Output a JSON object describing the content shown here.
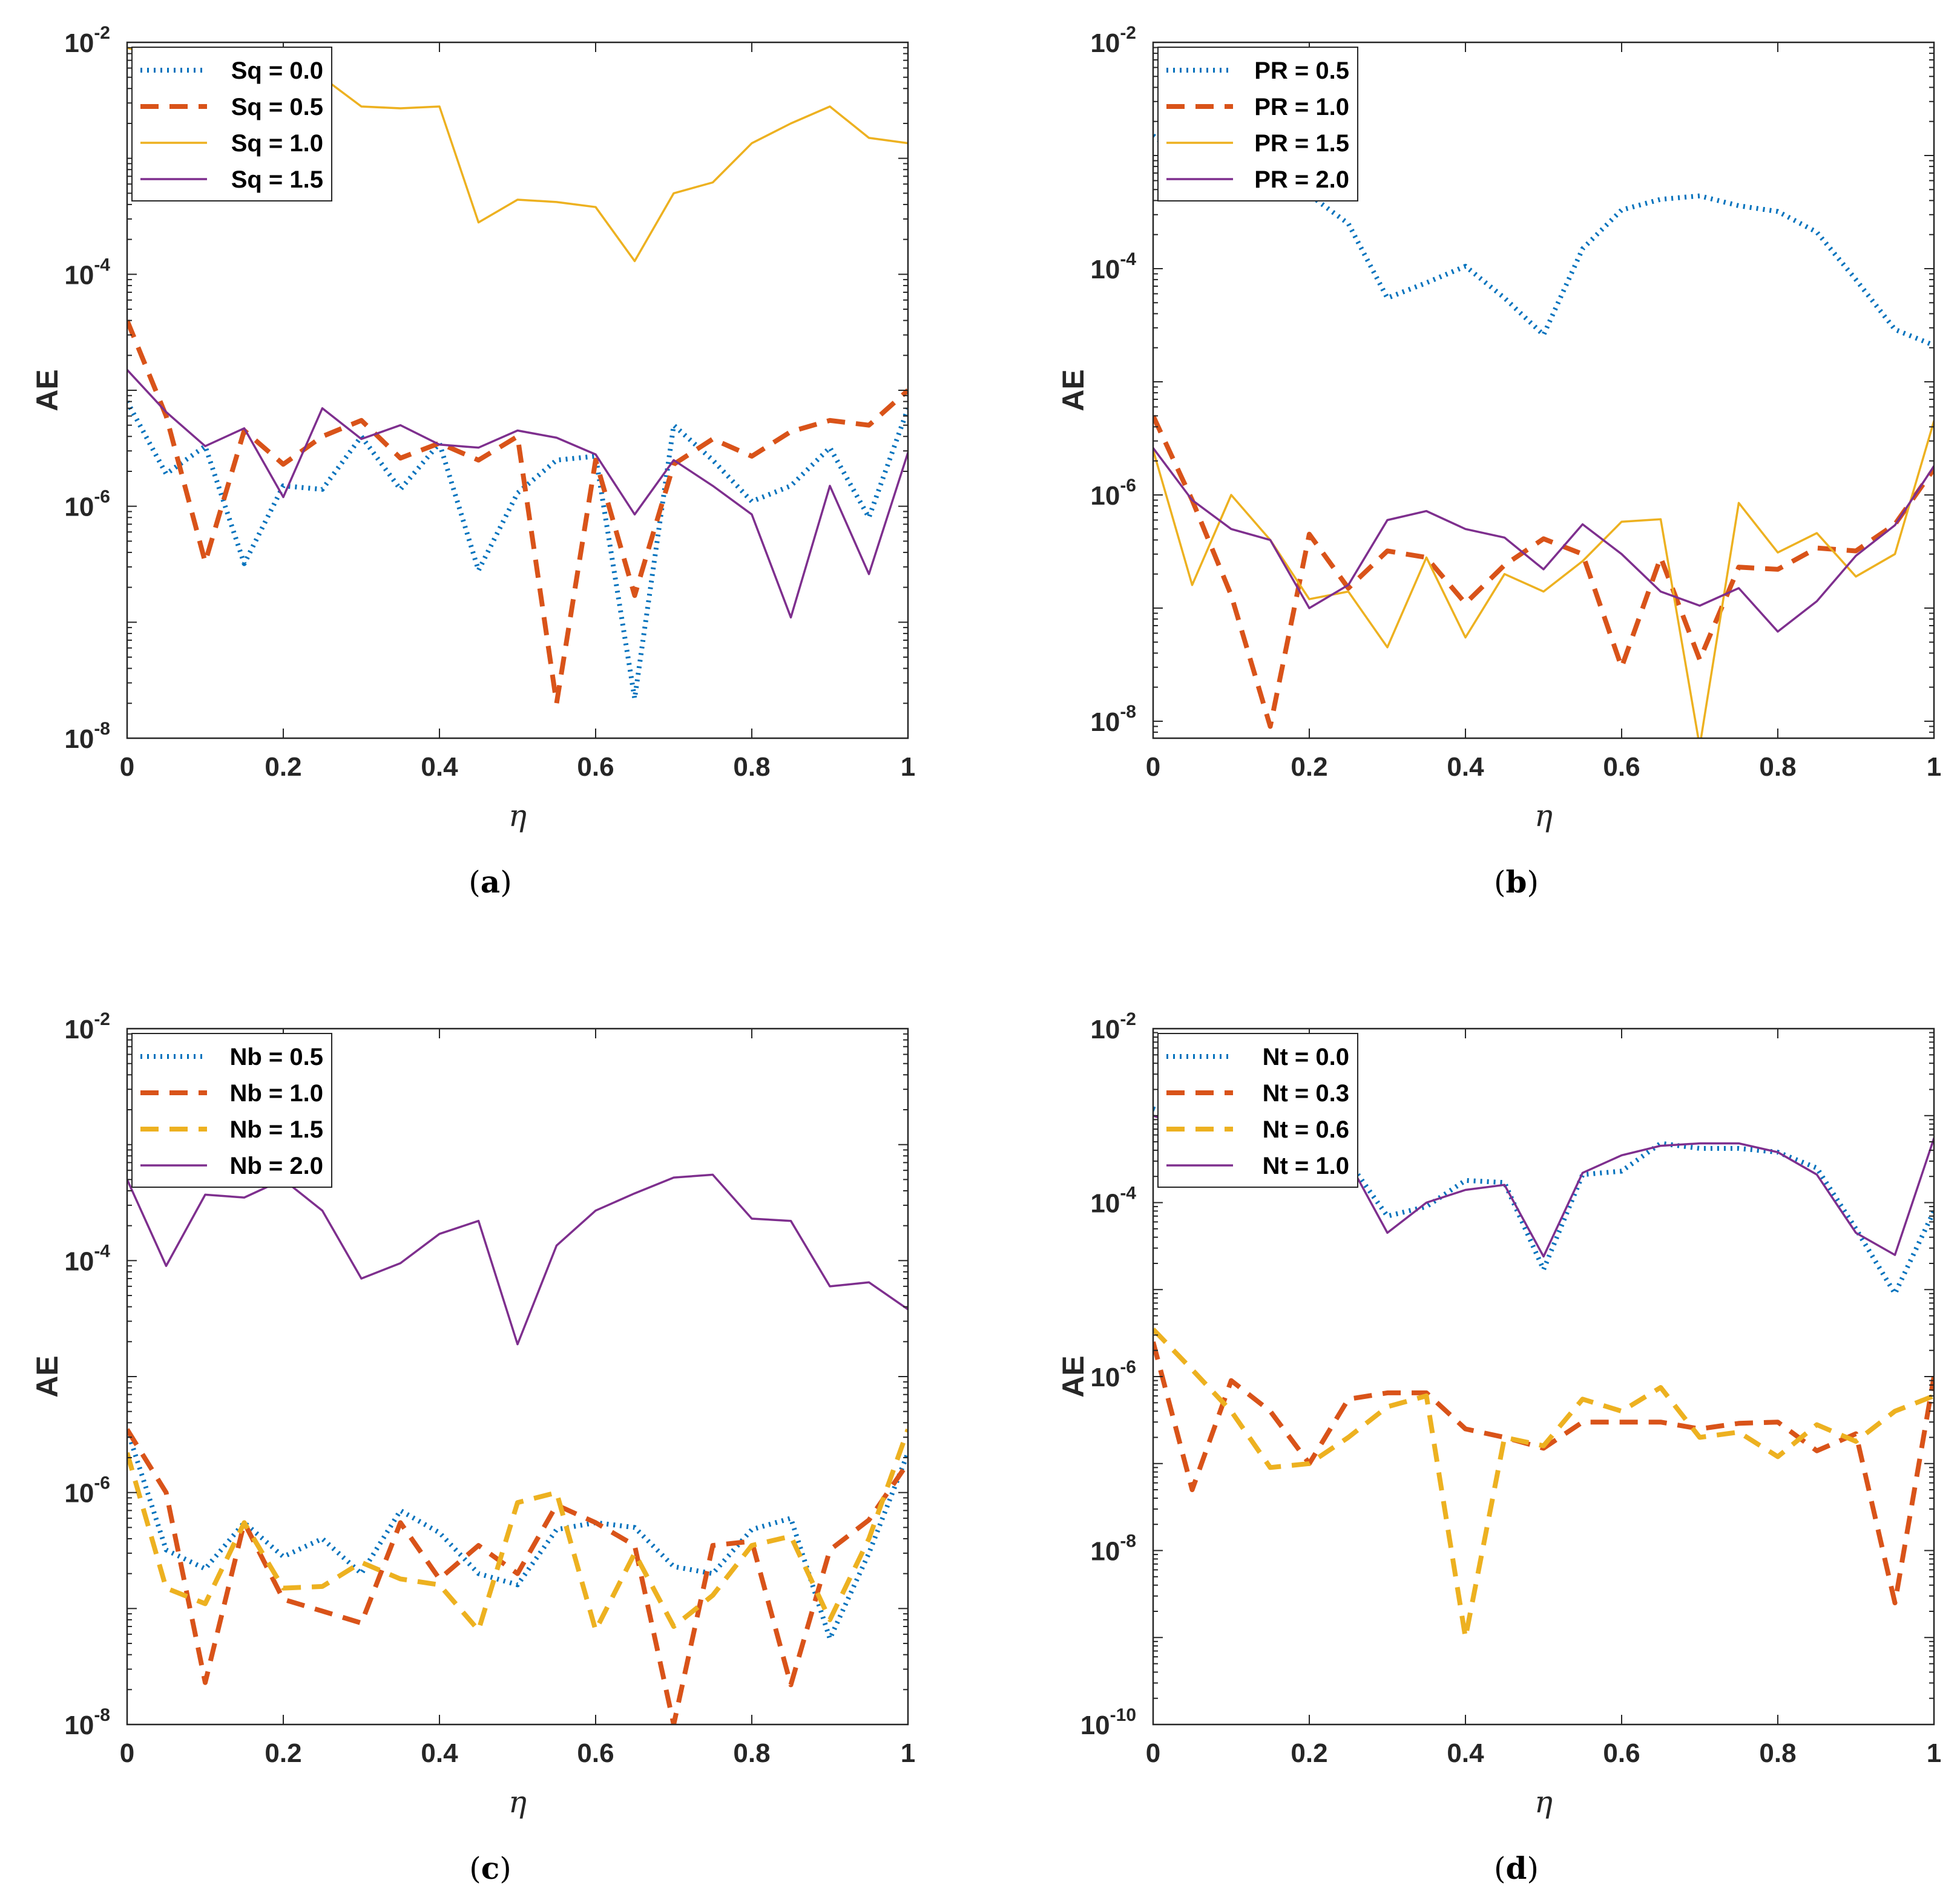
{
  "figure": {
    "colors": {
      "blue": "#0072BD",
      "orange": "#D95319",
      "yellow": "#EDB120",
      "purple": "#7E2F8E",
      "axis": "#262626"
    }
  },
  "chart_data": [
    {
      "type": "line",
      "panel": "a",
      "caption": "a",
      "xlabel": "η",
      "ylabel": "AE",
      "xlim": [
        0,
        1
      ],
      "ylim_exp": [
        -8,
        -2
      ],
      "yscale": "log",
      "x_ticks": [
        "0",
        "0.2",
        "0.4",
        "0.6",
        "0.8",
        "1"
      ],
      "legend_position": "top-left",
      "x": [
        0,
        0.05,
        0.1,
        0.15,
        0.2,
        0.25,
        0.3,
        0.35,
        0.4,
        0.45,
        0.5,
        0.55,
        0.6,
        0.65,
        0.7,
        0.75,
        0.8,
        0.85,
        0.9,
        0.95,
        1.0
      ],
      "series": [
        {
          "name": "Sq = 0.0",
          "color": "blue",
          "style": "dotted",
          "values": [
            8e-06,
            1.9e-06,
            3.3e-06,
            3.2e-07,
            1.5e-06,
            1.4e-06,
            4e-06,
            1.4e-06,
            3.5e-06,
            2.8e-07,
            1.3e-06,
            2.5e-06,
            2.7e-06,
            2.2e-08,
            5e-06,
            2.5e-06,
            1.1e-06,
            1.5e-06,
            3.2e-06,
            8e-07,
            7e-06
          ]
        },
        {
          "name": "Sq = 0.5",
          "color": "orange",
          "style": "dashed",
          "values": [
            4e-05,
            6e-06,
            3.3e-07,
            4.5e-06,
            2.3e-06,
            4e-06,
            5.5e-06,
            2.6e-06,
            3.5e-06,
            2.5e-06,
            4e-06,
            2e-08,
            2.5e-06,
            1.7e-07,
            2.3e-06,
            3.8e-06,
            2.7e-06,
            4.4e-06,
            5.5e-06,
            5e-06,
            1e-05
          ]
        },
        {
          "name": "Sq = 1.0",
          "color": "yellow",
          "style": "solid",
          "values": [
            0.009,
            0.007,
            0.006,
            0.0055,
            0.006,
            0.005,
            0.0028,
            0.0027,
            0.0028,
            0.00028,
            0.00044,
            0.00042,
            0.00038,
            0.00013,
            0.0005,
            0.00062,
            0.00135,
            0.002,
            0.0028,
            0.0015,
            0.00135
          ]
        },
        {
          "name": "Sq = 1.5",
          "color": "purple",
          "style": "solid",
          "values": [
            1.5e-05,
            6.5e-06,
            3.3e-06,
            4.7e-06,
            1.2e-06,
            7e-06,
            3.8e-06,
            5e-06,
            3.4e-06,
            3.2e-06,
            4.5e-06,
            3.9e-06,
            2.8e-06,
            8.5e-07,
            2.5e-06,
            1.5e-06,
            8.5e-07,
            1.1e-07,
            1.5e-06,
            2.6e-07,
            2.9e-06
          ]
        }
      ]
    },
    {
      "type": "line",
      "panel": "b",
      "caption": "b",
      "xlabel": "η",
      "ylabel": "AE",
      "xlim": [
        0,
        1
      ],
      "ylim_exp": [
        -8.15,
        -2
      ],
      "yscale": "log",
      "x_ticks": [
        "0",
        "0.2",
        "0.4",
        "0.6",
        "0.8",
        "1"
      ],
      "legend_position": "top-left",
      "x": [
        0,
        0.05,
        0.1,
        0.15,
        0.2,
        0.25,
        0.3,
        0.35,
        0.4,
        0.45,
        0.5,
        0.55,
        0.6,
        0.65,
        0.7,
        0.75,
        0.8,
        0.85,
        0.9,
        0.95,
        1.0
      ],
      "series": [
        {
          "name": "PR = 0.5",
          "color": "blue",
          "style": "dotted",
          "values": [
            0.0015,
            0.0008,
            0.0006,
            0.0005,
            0.00045,
            0.00025,
            5.5e-05,
            7.5e-05,
            0.000105,
            5.5e-05,
            2.6e-05,
            0.00015,
            0.00033,
            0.00041,
            0.00044,
            0.00036,
            0.00032,
            0.00021,
            8e-05,
            2.9e-05,
            2.1e-05
          ]
        },
        {
          "name": "PR = 1.0",
          "color": "orange",
          "style": "dashed",
          "values": [
            5e-06,
            9e-07,
            1.3e-07,
            9e-09,
            4.5e-07,
            1.5e-07,
            3.2e-07,
            2.8e-07,
            1.1e-07,
            2.4e-07,
            4.1e-07,
            3e-07,
            3e-08,
            2.8e-07,
            3.5e-08,
            2.3e-07,
            2.2e-07,
            3.4e-07,
            3.2e-07,
            5.5e-07,
            1.7e-06
          ]
        },
        {
          "name": "PR = 1.5",
          "color": "yellow",
          "style": "solid",
          "values": [
            2.5e-06,
            1.6e-07,
            1e-06,
            4e-07,
            1.2e-07,
            1.4e-07,
            4.5e-08,
            2.8e-07,
            5.5e-08,
            2e-07,
            1.4e-07,
            2.6e-07,
            5.8e-07,
            6.1e-07,
            6e-09,
            8.5e-07,
            3.1e-07,
            4.6e-07,
            1.9e-07,
            3e-07,
            4.5e-06
          ]
        },
        {
          "name": "PR = 2.0",
          "color": "purple",
          "style": "solid",
          "values": [
            2.6e-06,
            9e-07,
            5e-07,
            4e-07,
            1e-07,
            1.6e-07,
            6e-07,
            7.2e-07,
            5e-07,
            4.2e-07,
            2.2e-07,
            5.5e-07,
            3e-07,
            1.4e-07,
            1.05e-07,
            1.5e-07,
            6.2e-08,
            1.15e-07,
            2.9e-07,
            5.4e-07,
            1.8e-06
          ]
        }
      ]
    },
    {
      "type": "line",
      "panel": "c",
      "caption": "c",
      "xlabel": "η",
      "ylabel": "AE",
      "xlim": [
        0,
        1
      ],
      "ylim_exp": [
        -8,
        -2
      ],
      "yscale": "log",
      "x_ticks": [
        "0",
        "0.2",
        "0.4",
        "0.6",
        "0.8",
        "1"
      ],
      "legend_position": "top-left",
      "x": [
        0,
        0.05,
        0.1,
        0.15,
        0.2,
        0.25,
        0.3,
        0.35,
        0.4,
        0.45,
        0.5,
        0.55,
        0.6,
        0.65,
        0.7,
        0.75,
        0.8,
        0.85,
        0.9,
        0.95,
        1.0
      ],
      "series": [
        {
          "name": "Nb = 0.5",
          "color": "blue",
          "style": "dotted",
          "values": [
            3.5e-06,
            3.2e-07,
            2.2e-07,
            5.5e-07,
            2.8e-07,
            4e-07,
            2e-07,
            7e-07,
            4.5e-07,
            2e-07,
            1.6e-07,
            4.8e-07,
            5.5e-07,
            5e-07,
            2.3e-07,
            2e-07,
            4.8e-07,
            6e-07,
            5.5e-08,
            3e-07,
            2.2e-06
          ]
        },
        {
          "name": "Nb = 1.0",
          "color": "orange",
          "style": "dashed",
          "values": [
            3.5e-06,
            1e-06,
            2.3e-08,
            5.5e-07,
            1.2e-07,
            9.5e-08,
            7.5e-08,
            5.5e-07,
            1.8e-07,
            3.5e-07,
            2e-07,
            7.8e-07,
            5.5e-07,
            3.5e-07,
            1e-08,
            3.5e-07,
            3.8e-07,
            2.2e-08,
            3.2e-07,
            5.8e-07,
            1.8e-06
          ]
        },
        {
          "name": "Nb = 1.5",
          "color": "yellow",
          "style": "dashed",
          "values": [
            2.2e-06,
            1.5e-07,
            1.1e-07,
            5.5e-07,
            1.5e-07,
            1.55e-07,
            2.5e-07,
            1.8e-07,
            1.6e-07,
            6.5e-08,
            8.2e-07,
            1e-06,
            6.5e-08,
            3e-07,
            7e-08,
            1.3e-07,
            3.5e-07,
            4.2e-07,
            8e-08,
            4e-07,
            3.5e-06
          ]
        },
        {
          "name": "Nb = 2.0",
          "color": "purple",
          "style": "solid",
          "values": [
            0.0005,
            9e-05,
            0.00037,
            0.00035,
            0.0005,
            0.00027,
            7e-05,
            9.5e-05,
            0.00017,
            0.00022,
            1.9e-05,
            0.000135,
            0.00027,
            0.00038,
            0.00052,
            0.00055,
            0.00023,
            0.00022,
            6e-05,
            6.5e-05,
            3.8e-05
          ]
        }
      ]
    },
    {
      "type": "line",
      "panel": "d",
      "caption": "d",
      "xlabel": "η",
      "ylabel": "AE",
      "xlim": [
        0,
        1
      ],
      "ylim_exp": [
        -10,
        -2
      ],
      "yscale": "log",
      "x_ticks": [
        "0",
        "0.2",
        "0.4",
        "0.6",
        "0.8",
        "1"
      ],
      "legend_position": "top-left",
      "x": [
        0,
        0.05,
        0.1,
        0.15,
        0.2,
        0.25,
        0.3,
        0.35,
        0.4,
        0.45,
        0.5,
        0.55,
        0.6,
        0.65,
        0.7,
        0.75,
        0.8,
        0.85,
        0.9,
        0.95,
        1.0
      ],
      "series": [
        {
          "name": "Nt = 0.0",
          "color": "blue",
          "style": "dotted",
          "values": [
            0.0012,
            0.0008,
            0.0006,
            0.0005,
            0.00045,
            0.0003,
            7e-05,
            9e-05,
            0.00018,
            0.00017,
            1.7e-05,
            0.00021,
            0.00023,
            0.00048,
            0.00042,
            0.00042,
            0.00038,
            0.00025,
            5e-05,
            9e-06,
            8e-05
          ]
        },
        {
          "name": "Nt = 0.3",
          "color": "orange",
          "style": "dashed",
          "values": [
            2.5e-06,
            5e-08,
            9e-07,
            4e-07,
            1e-07,
            5.5e-07,
            6.5e-07,
            6.5e-07,
            2.5e-07,
            2e-07,
            1.5e-07,
            3e-07,
            3e-07,
            3e-07,
            2.5e-07,
            2.9e-07,
            3e-07,
            1.4e-07,
            2.2e-07,
            2.5e-09,
            1e-06
          ]
        },
        {
          "name": "Nt = 0.6",
          "color": "yellow",
          "style": "dashed",
          "values": [
            3.5e-06,
            1.2e-06,
            4e-07,
            9e-08,
            1e-07,
            2e-07,
            4.5e-07,
            6e-07,
            1e-09,
            2e-07,
            1.6e-07,
            5.5e-07,
            4e-07,
            7.5e-07,
            2e-07,
            2.3e-07,
            1.2e-07,
            2.8e-07,
            1.8e-07,
            4e-07,
            6e-07
          ]
        },
        {
          "name": "Nt = 1.0",
          "color": "purple",
          "style": "solid",
          "values": [
            0.001,
            0.0007,
            0.0005,
            0.0004,
            0.00035,
            0.0003,
            4.5e-05,
            0.0001,
            0.00014,
            0.00016,
            2.4e-05,
            0.00022,
            0.00035,
            0.00045,
            0.00048,
            0.00048,
            0.00038,
            0.00021,
            4.5e-05,
            2.5e-05,
            0.00055
          ]
        }
      ]
    }
  ]
}
